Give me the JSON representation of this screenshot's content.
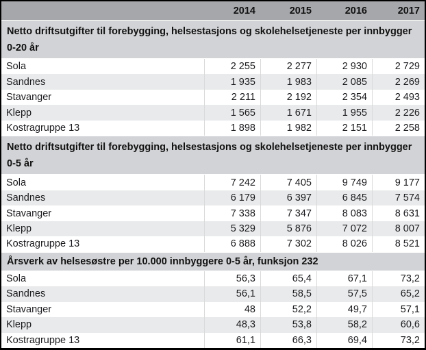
{
  "colors": {
    "border_color": "#000000",
    "header_bg": "#a6a7ab",
    "section_bg": "#d2d3d6",
    "stripe_bg": "#e9eaeb",
    "row_bg": "#ffffff",
    "grid_line": "#d9d9d9",
    "text_color": "#1a1a1e"
  },
  "table": {
    "years": [
      "2014",
      "2015",
      "2016",
      "2017"
    ],
    "sections": [
      {
        "title": "Netto driftsutgifter til forebygging, helsestasjons og skolehelsetjeneste per innbygger 0-20 år",
        "rows": [
          {
            "label": "Sola",
            "values": [
              "2 255",
              "2 277",
              "2 930",
              "2 729"
            ]
          },
          {
            "label": "Sandnes",
            "values": [
              "1 935",
              "1 983",
              "2 085",
              "2 269"
            ]
          },
          {
            "label": "Stavanger",
            "values": [
              "2 211",
              "2 192",
              "2 354",
              "2 493"
            ]
          },
          {
            "label": "Klepp",
            "values": [
              "1 565",
              "1 671",
              "1 955",
              "2 226"
            ]
          },
          {
            "label": "Kostragruppe 13",
            "values": [
              "1 898",
              "1 982",
              "2 151",
              "2 258"
            ]
          }
        ]
      },
      {
        "title": "Netto driftsutgifter til forebygging, helsestasjons og skolehelsetjeneste per innbygger 0-5 år",
        "rows": [
          {
            "label": "Sola",
            "values": [
              "7 242",
              "7 405",
              "9 749",
              "9 177"
            ]
          },
          {
            "label": "Sandnes",
            "values": [
              "6 179",
              "6 397",
              "6 845",
              "7 574"
            ]
          },
          {
            "label": "Stavanger",
            "values": [
              "7 338",
              "7 347",
              "8 083",
              "8 631"
            ]
          },
          {
            "label": "Klepp",
            "values": [
              "5 329",
              "5 876",
              "7 072",
              "8 007"
            ]
          },
          {
            "label": "Kostragruppe 13",
            "values": [
              "6 888",
              "7 302",
              "8 026",
              "8 521"
            ]
          }
        ]
      },
      {
        "title": "Årsverk av helsesøstre per 10.000 innbyggere 0-5 år, funksjon 232",
        "rows": [
          {
            "label": "Sola",
            "values": [
              "56,3",
              "65,4",
              "67,1",
              "73,2"
            ]
          },
          {
            "label": "Sandnes",
            "values": [
              "56,1",
              "58,5",
              "57,5",
              "65,2"
            ]
          },
          {
            "label": "Stavanger",
            "values": [
              "48",
              "52,2",
              "49,7",
              "57,1"
            ]
          },
          {
            "label": "Klepp",
            "values": [
              "48,3",
              "53,8",
              "58,2",
              "60,6"
            ]
          },
          {
            "label": "Kostragruppe 13",
            "values": [
              "61,1",
              "66,3",
              "69,4",
              "73,2"
            ]
          }
        ]
      }
    ]
  },
  "chart_data": {
    "type": "table",
    "columns": [
      "",
      "2014",
      "2015",
      "2016",
      "2017"
    ],
    "sections": [
      {
        "header": "Netto driftsutgifter til forebygging, helsestasjons og skolehelsetjeneste per innbygger 0-20 år",
        "rows": [
          [
            "Sola",
            2255,
            2277,
            2930,
            2729
          ],
          [
            "Sandnes",
            1935,
            1983,
            2085,
            2269
          ],
          [
            "Stavanger",
            2211,
            2192,
            2354,
            2493
          ],
          [
            "Klepp",
            1565,
            1671,
            1955,
            2226
          ],
          [
            "Kostragruppe 13",
            1898,
            1982,
            2151,
            2258
          ]
        ]
      },
      {
        "header": "Netto driftsutgifter til forebygging, helsestasjons og skolehelsetjeneste per innbygger 0-5 år",
        "rows": [
          [
            "Sola",
            7242,
            7405,
            9749,
            9177
          ],
          [
            "Sandnes",
            6179,
            6397,
            6845,
            7574
          ],
          [
            "Stavanger",
            7338,
            7347,
            8083,
            8631
          ],
          [
            "Klepp",
            5329,
            5876,
            7072,
            8007
          ],
          [
            "Kostragruppe 13",
            6888,
            7302,
            8026,
            8521
          ]
        ]
      },
      {
        "header": "Årsverk av helsesøstre per 10.000 innbyggere 0-5 år, funksjon 232",
        "rows": [
          [
            "Sola",
            56.3,
            65.4,
            67.1,
            73.2
          ],
          [
            "Sandnes",
            56.1,
            58.5,
            57.5,
            65.2
          ],
          [
            "Stavanger",
            48,
            52.2,
            49.7,
            57.1
          ],
          [
            "Klepp",
            48.3,
            53.8,
            58.2,
            60.6
          ],
          [
            "Kostragruppe 13",
            61.1,
            66.3,
            69.4,
            73.2
          ]
        ]
      }
    ]
  }
}
